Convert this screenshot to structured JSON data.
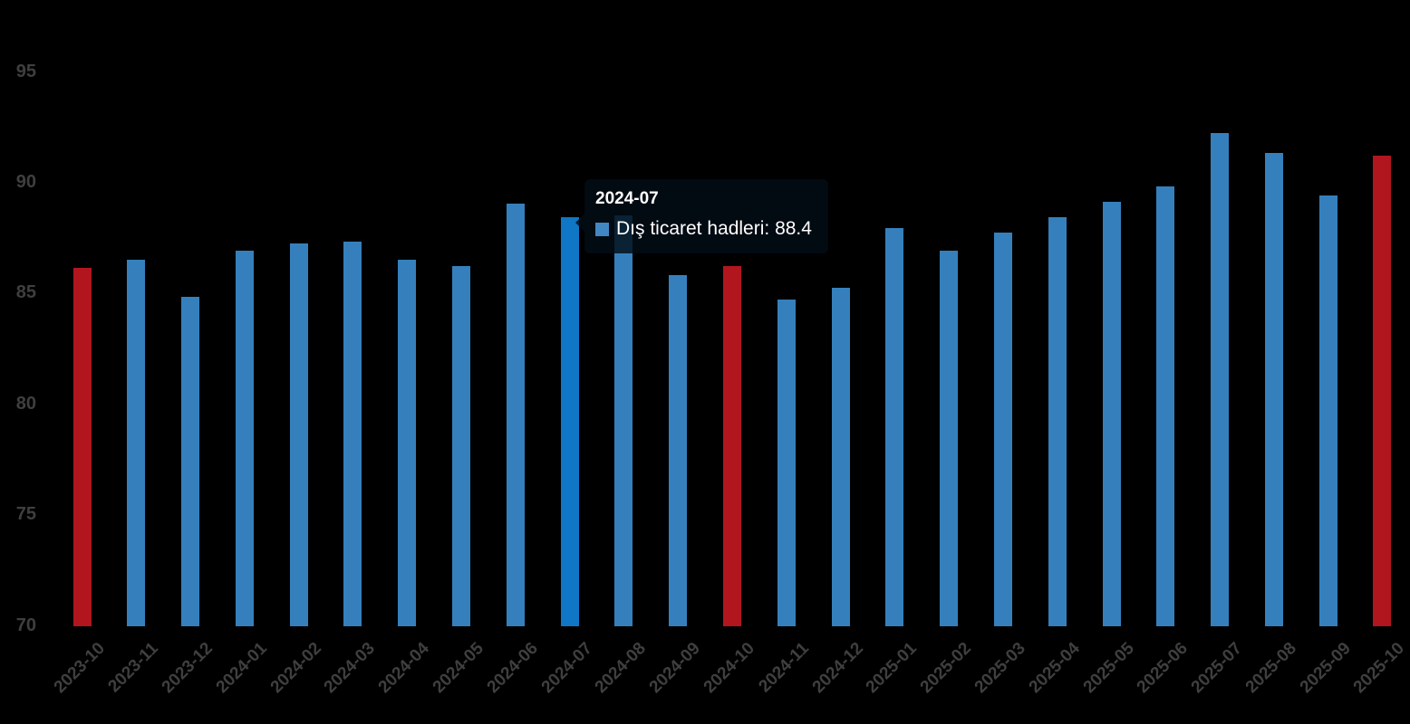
{
  "chart_data": {
    "type": "bar",
    "title": "",
    "series_name": "Dış ticaret hadleri",
    "categories": [
      "2023-10",
      "2023-11",
      "2023-12",
      "2024-01",
      "2024-02",
      "2024-03",
      "2024-04",
      "2024-05",
      "2024-06",
      "2024-07",
      "2024-08",
      "2024-09",
      "2024-10",
      "2024-11",
      "2024-12",
      "2025-01",
      "2025-02",
      "2025-03",
      "2025-04",
      "2025-05",
      "2025-06",
      "2025-07",
      "2025-08",
      "2025-09",
      "2025-10"
    ],
    "values": [
      86.1,
      86.5,
      84.8,
      86.9,
      87.2,
      87.3,
      86.5,
      86.2,
      89.0,
      88.4,
      88.5,
      85.8,
      86.2,
      84.7,
      85.2,
      87.9,
      86.9,
      87.7,
      88.4,
      89.1,
      89.8,
      92.2,
      91.3,
      89.4,
      91.2
    ],
    "yticks": [
      95,
      90,
      85,
      80,
      75,
      70
    ],
    "ylim": [
      70,
      95
    ],
    "grid": false,
    "legend": "none",
    "background_color": "#000000",
    "bar_color_default": "#3580bc",
    "bar_color_highlight": "#0f77c6",
    "bar_color_special": "#b1161f",
    "special_indices": [
      0,
      12,
      24
    ],
    "highlight_index": 9,
    "axis_label_color": "#3f3f3f"
  },
  "tooltip": {
    "header": "2024-07",
    "series_label": "Dış ticaret hadleri",
    "value": "88.4",
    "text": "Dış ticaret hadleri: 88.4",
    "marker_color": "#4187c4"
  }
}
